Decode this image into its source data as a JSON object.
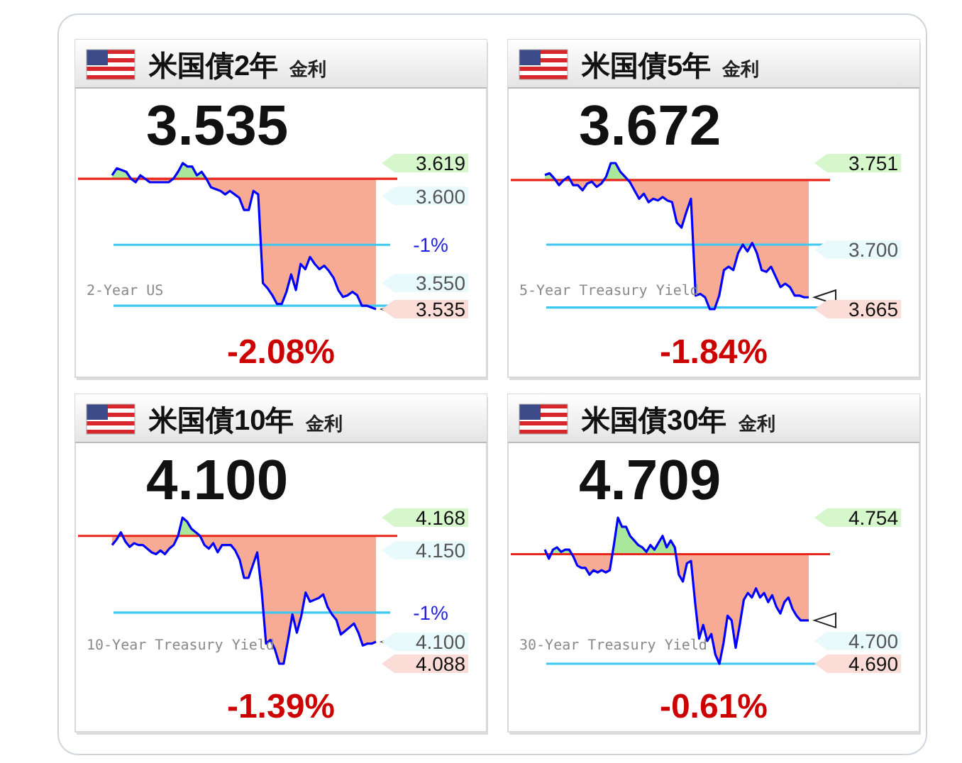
{
  "chart_data": [
    {
      "type": "line",
      "title": "米国債2年",
      "subtitle": "金利",
      "tick_labels": "y",
      "categories": [
        null,
        null,
        null,
        null,
        null,
        null,
        null,
        null,
        null,
        null,
        null,
        null,
        null,
        null,
        null,
        null,
        null,
        null,
        null,
        null,
        null,
        null,
        null,
        null,
        null,
        null,
        null,
        null,
        null,
        null,
        null,
        null,
        null,
        null,
        null,
        null,
        null,
        null,
        null,
        null,
        null,
        null,
        null,
        null,
        null,
        null,
        null,
        null,
        null,
        null,
        null,
        null,
        null,
        null,
        null,
        null,
        null
      ],
      "ylim": [
        3.535,
        3.619
      ],
      "yticks": [
        {
          "value": 3.619,
          "label": "3.619"
        },
        {
          "value": 3.6,
          "label": "3.600"
        },
        {
          "value": 3.55,
          "label": "3.550"
        },
        {
          "value": 3.535,
          "label": "3.535"
        }
      ],
      "ref_lines": [
        {
          "axis": "y",
          "value": 3.61,
          "color": "#e8261c"
        },
        {
          "axis": "y",
          "value": 3.572,
          "color": "#3cc8f0"
        },
        {
          "axis": "y",
          "value": 3.537,
          "color": "#3cc8f0"
        }
      ],
      "annotations": [
        "3.535",
        "-2.08%",
        "2-Year US",
        "-1%"
      ],
      "series": [
        {
          "color": "#0000ff",
          "values": [
            3.612,
            3.616,
            3.615,
            3.614,
            3.61,
            3.608,
            3.612,
            3.61,
            3.608,
            3.608,
            3.608,
            3.608,
            3.608,
            3.61,
            3.614,
            3.619,
            3.617,
            3.617,
            3.612,
            3.614,
            3.61,
            3.605,
            3.604,
            3.603,
            3.601,
            3.603,
            3.601,
            3.599,
            3.592,
            3.592,
            3.603,
            3.601,
            3.55,
            3.547,
            3.543,
            3.538,
            3.538,
            3.545,
            3.555,
            3.546,
            3.561,
            3.558,
            3.565,
            3.561,
            3.558,
            3.56,
            3.557,
            3.553,
            3.546,
            3.542,
            3.543,
            3.545,
            3.543,
            3.537,
            3.537,
            3.536,
            3.535
          ]
        }
      ]
    },
    {
      "type": "line",
      "title": "米国債5年",
      "subtitle": "金利",
      "tick_labels": "y",
      "categories": [
        null,
        null,
        null,
        null,
        null,
        null,
        null,
        null,
        null,
        null,
        null,
        null,
        null,
        null,
        null,
        null,
        null,
        null,
        null,
        null,
        null,
        null,
        null,
        null,
        null,
        null,
        null,
        null,
        null,
        null,
        null,
        null,
        null,
        null,
        null,
        null,
        null,
        null,
        null,
        null,
        null,
        null,
        null,
        null,
        null,
        null,
        null,
        null,
        null,
        null,
        null,
        null,
        null,
        null,
        null,
        null,
        null
      ],
      "ylim": [
        3.665,
        3.751
      ],
      "yticks": [
        {
          "value": 3.751,
          "label": "3.751"
        },
        {
          "value": 3.7,
          "label": "3.700"
        },
        {
          "value": 3.665,
          "label": "3.665"
        }
      ],
      "ref_lines": [
        {
          "axis": "y",
          "value": 3.741,
          "color": "#e8261c"
        },
        {
          "axis": "y",
          "value": 3.703,
          "color": "#3cc8f0"
        },
        {
          "axis": "y",
          "value": 3.666,
          "color": "#3cc8f0"
        }
      ],
      "annotations": [
        "3.672",
        "-1.84%",
        "5-Year Treasury Yield"
      ],
      "series": [
        {
          "color": "#0000ff",
          "values": [
            3.744,
            3.745,
            3.742,
            3.738,
            3.741,
            3.743,
            3.738,
            3.738,
            3.735,
            3.739,
            3.74,
            3.737,
            3.739,
            3.743,
            3.751,
            3.751,
            3.746,
            3.743,
            3.74,
            3.735,
            3.73,
            3.733,
            3.728,
            3.73,
            3.729,
            3.731,
            3.729,
            3.728,
            3.716,
            3.713,
            3.722,
            3.73,
            3.673,
            3.674,
            3.672,
            3.665,
            3.665,
            3.673,
            3.688,
            3.69,
            3.688,
            3.698,
            3.703,
            3.699,
            3.704,
            3.698,
            3.688,
            3.687,
            3.69,
            3.684,
            3.678,
            3.68,
            3.678,
            3.673,
            3.673,
            3.672,
            3.672
          ]
        }
      ]
    },
    {
      "type": "line",
      "title": "米国債10年",
      "subtitle": "金利",
      "tick_labels": "y",
      "categories": [
        null,
        null,
        null,
        null,
        null,
        null,
        null,
        null,
        null,
        null,
        null,
        null,
        null,
        null,
        null,
        null,
        null,
        null,
        null,
        null,
        null,
        null,
        null,
        null,
        null,
        null,
        null,
        null,
        null,
        null,
        null,
        null,
        null,
        null,
        null,
        null,
        null,
        null,
        null,
        null,
        null,
        null,
        null,
        null,
        null,
        null,
        null,
        null,
        null,
        null,
        null,
        null,
        null,
        null,
        null,
        null,
        null,
        null,
        null,
        null,
        null
      ],
      "ylim": [
        4.088,
        4.168
      ],
      "yticks": [
        {
          "value": 4.168,
          "label": "4.168"
        },
        {
          "value": 4.15,
          "label": "4.150"
        },
        {
          "value": 4.1,
          "label": "4.100"
        },
        {
          "value": 4.088,
          "label": "4.088"
        }
      ],
      "ref_lines": [
        {
          "axis": "y",
          "value": 4.158,
          "color": "#e8261c"
        },
        {
          "axis": "y",
          "value": 4.116,
          "color": "#3cc8f0"
        }
      ],
      "annotations": [
        "4.100",
        "-1.39%",
        "10-Year Treasury Yield",
        "-1%"
      ],
      "series": [
        {
          "color": "#0000ff",
          "values": [
            4.153,
            4.156,
            4.16,
            4.155,
            4.152,
            4.154,
            4.153,
            4.153,
            4.151,
            4.149,
            4.148,
            4.15,
            4.148,
            4.151,
            4.153,
            4.158,
            4.168,
            4.166,
            4.162,
            4.16,
            4.158,
            4.153,
            4.151,
            4.154,
            4.149,
            4.153,
            4.153,
            4.153,
            4.15,
            4.145,
            4.135,
            4.135,
            4.142,
            4.149,
            4.128,
            4.099,
            4.101,
            4.096,
            4.088,
            4.088,
            4.101,
            4.115,
            4.105,
            4.114,
            4.127,
            4.122,
            4.123,
            4.124,
            4.126,
            4.119,
            4.115,
            4.112,
            4.104,
            4.106,
            4.108,
            4.11,
            4.105,
            4.098,
            4.099,
            4.099,
            4.1
          ]
        }
      ]
    },
    {
      "type": "line",
      "title": "米国債30年",
      "subtitle": "金利",
      "tick_labels": "y",
      "categories": [
        null,
        null,
        null,
        null,
        null,
        null,
        null,
        null,
        null,
        null,
        null,
        null,
        null,
        null,
        null,
        null,
        null,
        null,
        null,
        null,
        null,
        null,
        null,
        null,
        null,
        null,
        null,
        null,
        null,
        null,
        null,
        null,
        null,
        null,
        null,
        null,
        null,
        null,
        null,
        null,
        null,
        null,
        null,
        null,
        null,
        null,
        null,
        null,
        null,
        null,
        null,
        null,
        null,
        null,
        null,
        null,
        null,
        null,
        null,
        null,
        null,
        null,
        null,
        null,
        null,
        null
      ],
      "ylim": [
        4.69,
        4.754
      ],
      "yticks": [
        {
          "value": 4.754,
          "label": "4.754"
        },
        {
          "value": 4.7,
          "label": "4.700"
        },
        {
          "value": 4.69,
          "label": "4.690"
        }
      ],
      "ref_lines": [
        {
          "axis": "y",
          "value": 4.738,
          "color": "#e8261c"
        },
        {
          "axis": "y",
          "value": 4.69,
          "color": "#3cc8f0"
        }
      ],
      "annotations": [
        "4.709",
        "-0.61%",
        "30-Year Treasury Yield"
      ],
      "series": [
        {
          "color": "#0000ff",
          "values": [
            4.74,
            4.736,
            4.74,
            4.741,
            4.739,
            4.74,
            4.74,
            4.737,
            4.733,
            4.732,
            4.732,
            4.729,
            4.731,
            4.73,
            4.731,
            4.73,
            4.731,
            4.742,
            4.754,
            4.75,
            4.75,
            4.746,
            4.744,
            4.742,
            4.741,
            4.739,
            4.742,
            4.74,
            4.743,
            4.746,
            4.741,
            4.744,
            4.741,
            4.729,
            4.726,
            4.734,
            4.735,
            4.717,
            4.701,
            4.707,
            4.7,
            4.703,
            4.694,
            4.69,
            4.699,
            4.711,
            4.709,
            4.697,
            4.707,
            4.718,
            4.721,
            4.719,
            4.723,
            4.719,
            4.721,
            4.717,
            4.72,
            4.715,
            4.712,
            4.717,
            4.719,
            4.714,
            4.711,
            4.709,
            4.709,
            4.709
          ]
        }
      ]
    }
  ]
}
